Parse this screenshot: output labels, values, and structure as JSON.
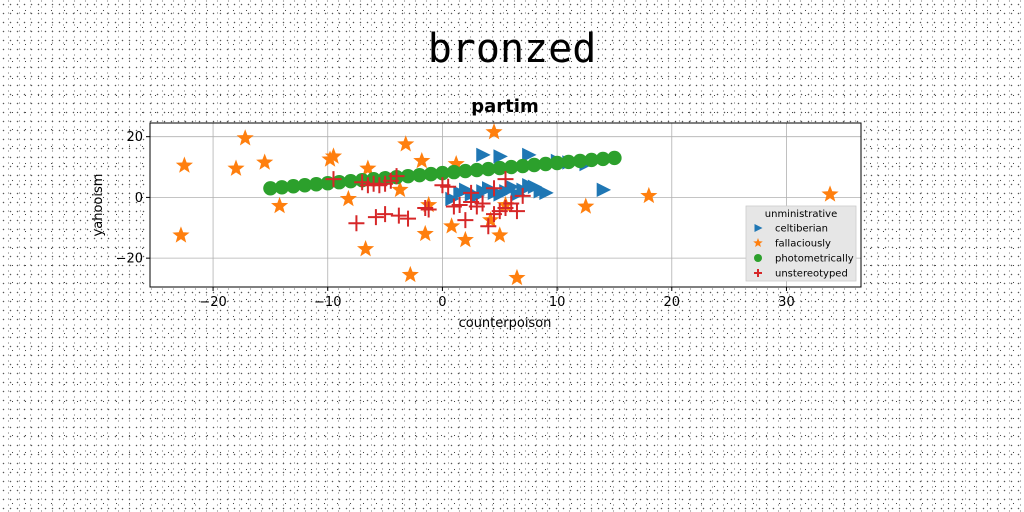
{
  "suptitle": "bronzed",
  "chart_data": {
    "type": "scatter",
    "title": "partim",
    "xlabel": "counterpoison",
    "ylabel": "yahooism",
    "xlim": [
      -25.5,
      36.5
    ],
    "ylim": [
      -29.5,
      24.5
    ],
    "xticks": [
      -20,
      -10,
      0,
      10,
      20,
      30
    ],
    "yticks": [
      -20,
      0,
      20
    ],
    "xtick_labels": [
      "−20",
      "−10",
      "0",
      "10",
      "20",
      "30"
    ],
    "ytick_labels": [
      "−20",
      "0",
      "20"
    ],
    "grid": true,
    "legend": {
      "title": "unministrative",
      "placement": "lower-right"
    },
    "series": [
      {
        "name": "celtiberian",
        "marker": "triangle-right",
        "color": "#1f77b4",
        "x": [
          0.8,
          1.5,
          2.0,
          2.5,
          3.0,
          3.5,
          4.0,
          4.5,
          5.0,
          5.5,
          6.0,
          6.5,
          7.0,
          7.5,
          8.0,
          8.5,
          9.0,
          10.0,
          11.0,
          12.5,
          14.0,
          3.5,
          5.0,
          7.5
        ],
        "y": [
          -0.5,
          1.5,
          2.5,
          1.0,
          0.5,
          2.0,
          3.0,
          1.5,
          1.0,
          2.0,
          3.5,
          1.0,
          2.5,
          4.0,
          3.5,
          2.0,
          1.5,
          12.0,
          11.5,
          11.0,
          2.5,
          14.0,
          13.5,
          14.0
        ]
      },
      {
        "name": "fallaciously",
        "marker": "star",
        "color": "#ff7f0e",
        "x": [
          -22.5,
          -22.8,
          -17.2,
          -18.0,
          -15.5,
          -14.2,
          -9.5,
          -9.8,
          -8.2,
          -6.5,
          -6.7,
          -3.7,
          -3.2,
          -2.8,
          -1.8,
          -1.2,
          -1.5,
          0.8,
          1.2,
          2.0,
          4.5,
          4.2,
          5.0,
          5.5,
          6.5,
          12.5,
          18.0,
          33.8
        ],
        "y": [
          10.5,
          -12.5,
          19.5,
          9.5,
          11.5,
          -2.8,
          13.5,
          12.5,
          -0.5,
          9.5,
          -17.0,
          2.5,
          17.5,
          -25.5,
          12.0,
          -2.5,
          -12.0,
          -9.5,
          11.0,
          -14.0,
          21.5,
          -7.5,
          -12.5,
          -2.5,
          -26.5,
          -3.0,
          0.5,
          1.0
        ]
      },
      {
        "name": "photometrically",
        "marker": "circle",
        "color": "#2ca02c",
        "x": [
          -15.0,
          -14.0,
          -13.0,
          -12.0,
          -11.0,
          -10.0,
          -9.0,
          -8.0,
          -7.0,
          -6.0,
          -5.0,
          -4.0,
          -3.0,
          -2.0,
          -1.0,
          0.0,
          1.0,
          2.0,
          3.0,
          4.0,
          5.0,
          6.0,
          7.0,
          8.0,
          9.0,
          10.0,
          11.0,
          12.0,
          13.0,
          14.0,
          15.0
        ],
        "y": [
          3.0,
          3.33,
          3.67,
          4.0,
          4.33,
          4.67,
          5.0,
          5.33,
          5.67,
          6.0,
          6.33,
          6.67,
          7.0,
          7.33,
          7.67,
          8.0,
          8.33,
          8.67,
          9.0,
          9.33,
          9.67,
          10.0,
          10.33,
          10.67,
          11.0,
          11.33,
          11.67,
          12.0,
          12.33,
          12.67,
          13.0
        ]
      },
      {
        "name": "unstereotyped",
        "marker": "plus",
        "color": "#d62728",
        "x": [
          -9.5,
          -7.0,
          -6.5,
          -6.0,
          -5.5,
          -5.0,
          -4.5,
          -4.0,
          -7.5,
          -5.8,
          -5.0,
          -3.8,
          -3.0,
          -1.5,
          -1.2,
          0.0,
          0.5,
          1.0,
          1.5,
          2.0,
          2.5,
          3.0,
          3.5,
          4.0,
          4.5,
          5.0,
          5.5,
          6.0,
          6.5,
          7.0,
          2.5,
          4.5,
          5.5
        ],
        "y": [
          6.0,
          5.0,
          4.0,
          4.5,
          4.0,
          4.5,
          5.5,
          7.0,
          -8.5,
          -6.5,
          -5.5,
          -6.0,
          -7.0,
          -3.5,
          -4.0,
          4.0,
          3.5,
          -3.0,
          -2.5,
          -7.5,
          -1.5,
          -3.0,
          -2.0,
          -9.5,
          -5.5,
          -4.5,
          -3.5,
          -2.0,
          -4.5,
          0.5,
          1.5,
          3.0,
          6.0
        ]
      }
    ]
  }
}
